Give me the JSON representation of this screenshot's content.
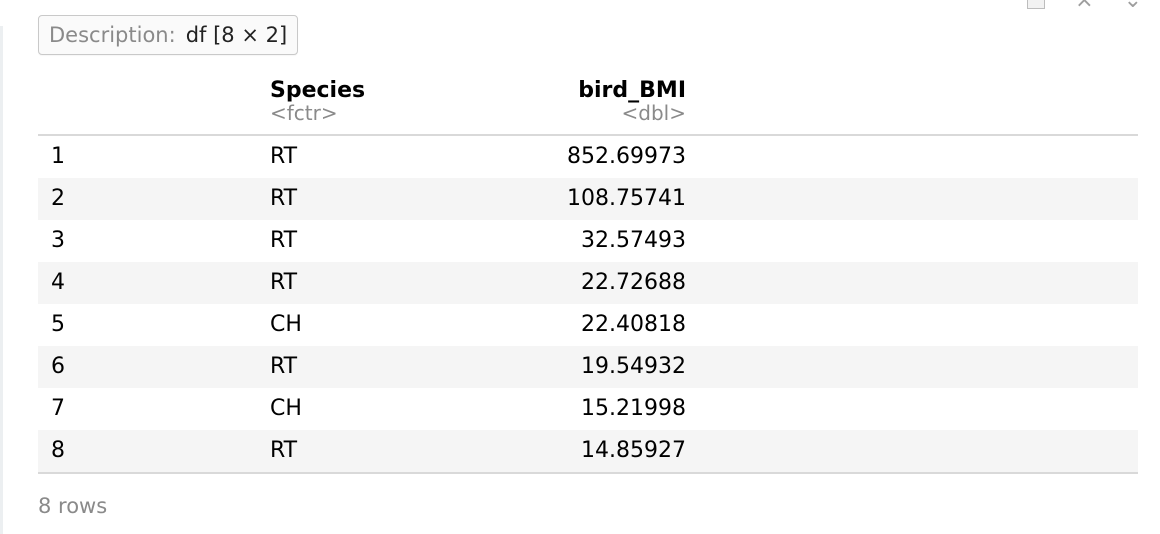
{
  "header": {
    "description_label": "Description:",
    "description_value": "df [8 × 2]"
  },
  "window_controls": {
    "export_icon": "export-icon",
    "close_icon": "close-icon",
    "collapse_icon": "collapse-icon",
    "close_glyph": "×",
    "collapse_glyph": "⌄"
  },
  "table": {
    "columns": [
      {
        "name": "",
        "type": ""
      },
      {
        "name": "Species",
        "type": "<fctr>"
      },
      {
        "name": "bird_BMI",
        "type": "<dbl>"
      }
    ],
    "rows": [
      {
        "index": "1",
        "species": "RT",
        "bird_bmi": "852.69973"
      },
      {
        "index": "2",
        "species": "RT",
        "bird_bmi": "108.75741"
      },
      {
        "index": "3",
        "species": "RT",
        "bird_bmi": "32.57493"
      },
      {
        "index": "4",
        "species": "RT",
        "bird_bmi": "22.72688"
      },
      {
        "index": "5",
        "species": "CH",
        "bird_bmi": "22.40818"
      },
      {
        "index": "6",
        "species": "RT",
        "bird_bmi": "19.54932"
      },
      {
        "index": "7",
        "species": "CH",
        "bird_bmi": "15.21998"
      },
      {
        "index": "8",
        "species": "RT",
        "bird_bmi": "14.85927"
      }
    ]
  },
  "footer": {
    "row_count": "8 rows"
  }
}
